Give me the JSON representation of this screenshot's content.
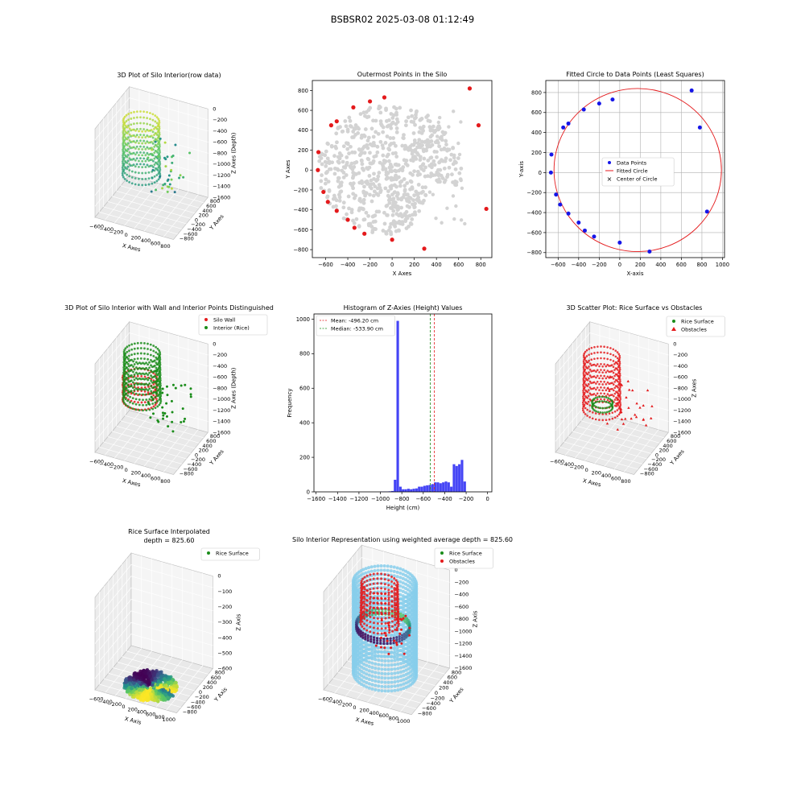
{
  "page": {
    "suptitle": "BSBSR02 2025-03-08 01:12:49"
  },
  "colors": {
    "red": "#e41a1c",
    "green": "#1a8c1a",
    "blue": "#1515e8",
    "grey": "#d3d3d3",
    "hist": "#4545f5",
    "skyblue": "#87ceeb",
    "pane": "#f2f2f2",
    "paneEdge": "#bdbdbd"
  },
  "chart_data": [
    {
      "id": "p1",
      "type": "scatter",
      "projection": "3d",
      "title": "3D Plot of Silo Interior(row data)",
      "xlabel": "X Axes",
      "ylabel": "Y Axes",
      "zlabel": "Z Axes (Depth)",
      "xticks": [
        "−600",
        "−400",
        "−200",
        "0",
        "200",
        "400",
        "600",
        "800"
      ],
      "yticks": [
        "−800",
        "−600",
        "−400",
        "−200",
        "0",
        "200",
        "400",
        "600",
        "800"
      ],
      "zticks": [
        "−1600",
        "−1400",
        "−1200",
        "−1000",
        "−800",
        "−600",
        "−400",
        "−200",
        "0"
      ],
      "colormap": "viridis",
      "xlim": [
        -700,
        900
      ],
      "ylim": [
        -900,
        900
      ],
      "zlim": [
        -1700,
        0
      ]
    },
    {
      "id": "p2",
      "type": "scatter",
      "title": "Outermost Points in the Silo",
      "xlabel": "X Axes",
      "ylabel": "Y Axes",
      "xlim": [
        -720,
        900
      ],
      "ylim": [
        -880,
        900
      ],
      "xticks": [
        -600,
        -400,
        -200,
        0,
        200,
        400,
        600,
        800
      ],
      "yticks": [
        -800,
        -600,
        -400,
        -200,
        0,
        200,
        400,
        600,
        800
      ],
      "series": [
        {
          "color": "red",
          "points": [
            [
              -670,
              0
            ],
            [
              -665,
              180
            ],
            [
              -620,
              -220
            ],
            [
              -580,
              -320
            ],
            [
              -550,
              450
            ],
            [
              -500,
              -410
            ],
            [
              -400,
              -500
            ],
            [
              -500,
              490
            ],
            [
              -350,
              630
            ],
            [
              -250,
              -640
            ],
            [
              -340,
              -580
            ],
            [
              -200,
              690
            ],
            [
              -70,
              730
            ],
            [
              0,
              -700
            ],
            [
              290,
              -790
            ],
            [
              700,
              820
            ],
            [
              780,
              450
            ],
            [
              850,
              -390
            ]
          ]
        }
      ]
    },
    {
      "id": "p3",
      "type": "scatter",
      "title": "Fitted Circle to Data Points (Least Squares)",
      "xlabel": "X-axis",
      "ylabel": "Y-axis",
      "xlim": [
        -720,
        1020
      ],
      "ylim": [
        -850,
        920
      ],
      "xticks": [
        -600,
        -400,
        -200,
        0,
        200,
        400,
        600,
        800,
        1000
      ],
      "yticks": [
        -800,
        -600,
        -400,
        -200,
        0,
        200,
        400,
        600,
        800
      ],
      "grid": true,
      "legend_position": "center",
      "legend": [
        "Data Points",
        "Fitted Circle",
        "Center of Circle"
      ],
      "circle": {
        "cx": 175,
        "cy": 25,
        "r": 815
      },
      "series": [
        {
          "name": "Data Points",
          "color": "blue",
          "points": [
            [
              -670,
              0
            ],
            [
              -665,
              180
            ],
            [
              -620,
              -220
            ],
            [
              -580,
              -320
            ],
            [
              -550,
              450
            ],
            [
              -500,
              -410
            ],
            [
              -400,
              -500
            ],
            [
              -500,
              490
            ],
            [
              -350,
              630
            ],
            [
              -250,
              -640
            ],
            [
              -340,
              -580
            ],
            [
              -200,
              690
            ],
            [
              -70,
              730
            ],
            [
              0,
              -700
            ],
            [
              290,
              -790
            ],
            [
              700,
              820
            ],
            [
              780,
              450
            ],
            [
              850,
              -390
            ]
          ]
        }
      ]
    },
    {
      "id": "p4",
      "type": "scatter",
      "projection": "3d",
      "title": "3D Plot of Silo Interior with Wall and Interior Points Distinguished",
      "xlabel": "X Axes",
      "ylabel": "Y Axes",
      "zlabel": "Z Axes (Depth)",
      "xticks": [
        "−600",
        "−400",
        "−200",
        "0",
        "200",
        "400",
        "600",
        "800"
      ],
      "yticks": [
        "−800",
        "−600",
        "−400",
        "−200",
        "0",
        "200",
        "400",
        "600",
        "800"
      ],
      "zticks": [
        "−1600",
        "−1400",
        "−1200",
        "−1000",
        "−800",
        "−600",
        "−400",
        "−200",
        "0"
      ],
      "legend_position": "upper right",
      "legend": [
        "Silo Wall",
        "Interior (Rice)"
      ]
    },
    {
      "id": "p5",
      "type": "bar",
      "title": "Histogram of Z-Axies (Height) Values",
      "xlabel": "Height (cm)",
      "ylabel": "Frequency",
      "xlim": [
        -1620,
        40
      ],
      "ylim": [
        0,
        1030
      ],
      "xticks": [
        -1600,
        -1400,
        -1200,
        -1000,
        -800,
        -600,
        -400,
        -200,
        0
      ],
      "yticks": [
        0,
        200,
        400,
        600,
        800,
        1000
      ],
      "bin_start": -1000,
      "bin_width": 25,
      "values": [
        2,
        2,
        2,
        3,
        5,
        70,
        990,
        30,
        15,
        15,
        18,
        15,
        18,
        20,
        30,
        30,
        35,
        38,
        40,
        45,
        55,
        55,
        50,
        55,
        60,
        55,
        30,
        160,
        150,
        160,
        185,
        60
      ],
      "mean": -496.2,
      "median": -533.9,
      "legend_position": "upper left",
      "legend": [
        "Mean: -496.20 cm",
        "Median: -533.90 cm"
      ]
    },
    {
      "id": "p6",
      "type": "scatter",
      "projection": "3d",
      "title": "3D Scatter Plot: Rice Surface vs Obstacles",
      "xlabel": "X Axes",
      "ylabel": "Y Axes",
      "zlabel": "Z Axes",
      "xticks": [
        "−600",
        "−400",
        "−200",
        "0",
        "200",
        "400",
        "600",
        "800"
      ],
      "yticks": [
        "−800",
        "−600",
        "−400",
        "−200",
        "0",
        "200",
        "400",
        "600",
        "800"
      ],
      "zticks": [
        "−1600",
        "−1400",
        "−1200",
        "−1000",
        "−800",
        "−600",
        "−400",
        "−200",
        "0"
      ],
      "legend_position": "upper right",
      "legend": [
        "Rice Surface",
        "Obstacles"
      ]
    },
    {
      "id": "p7",
      "type": "scatter",
      "projection": "3d",
      "title": "Rice Surface Interpolated",
      "title2": "depth = 825.60",
      "xlabel": "X Axis",
      "ylabel": "Y Axis",
      "zlabel": "Z Axis",
      "xticks": [
        "−600",
        "−400",
        "−200",
        "0",
        "200",
        "400",
        "600",
        "800",
        "1000"
      ],
      "yticks": [
        "−800",
        "−600",
        "−400",
        "−200",
        "0",
        "200",
        "400",
        "600",
        "800"
      ],
      "zticks": [
        "−600",
        "−500",
        "−400",
        "−300",
        "−200",
        "−100",
        "0"
      ],
      "legend_position": "upper right",
      "legend": [
        "Rice Surface"
      ]
    },
    {
      "id": "p8",
      "type": "scatter",
      "projection": "3d",
      "title": "Silo Interior Representation using weighted average depth = 825.60",
      "xlabel": "X Axes",
      "ylabel": "Y Axes",
      "zlabel": "Z Axis",
      "xticks": [
        "−600",
        "−400",
        "−200",
        "0",
        "200",
        "400",
        "600",
        "800",
        "1000"
      ],
      "yticks": [
        "−800",
        "−600",
        "−400",
        "−200",
        "0",
        "200",
        "400",
        "600",
        "800"
      ],
      "zticks": [
        "−1600",
        "−1400",
        "−1200",
        "−1000",
        "−800",
        "−600",
        "−400",
        "−200",
        "0"
      ],
      "legend_position": "upper right",
      "legend": [
        "Rice Surface",
        "Obstacles"
      ]
    }
  ]
}
